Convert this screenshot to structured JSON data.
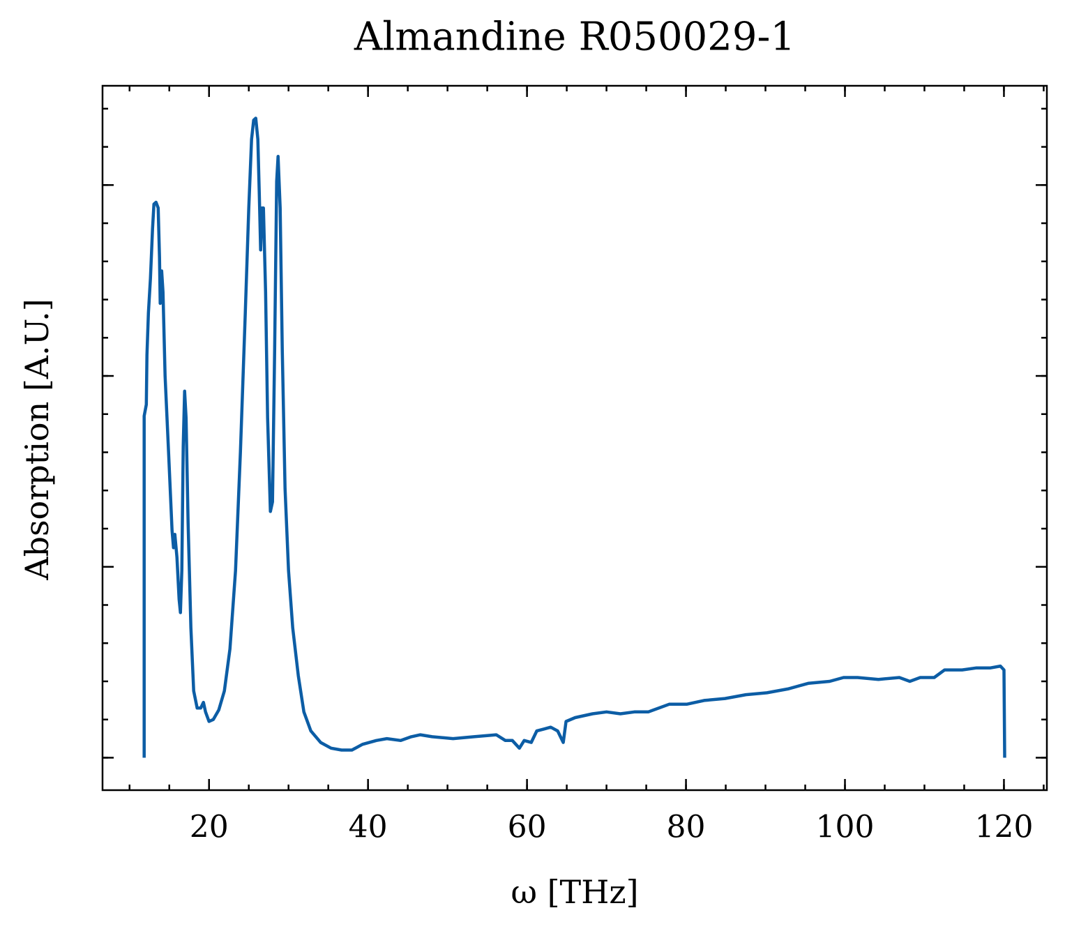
{
  "chart_data": {
    "type": "line",
    "title": "Almandine R050029-1",
    "x_label": "ω [THz]",
    "y_label": "Absorption [A.U.]",
    "series": [
      {
        "name": "Almandine R050029-1",
        "color": "#0c5da5",
        "x": [
          11.84,
          11.84,
          12.11,
          12.19,
          12.37,
          12.63,
          12.89,
          13.07,
          13.33,
          13.6,
          13.77,
          13.86,
          14.04,
          14.21,
          14.47,
          14.91,
          15.35,
          15.53,
          15.7,
          15.96,
          16.23,
          16.4,
          16.58,
          16.75,
          16.93,
          17.11,
          17.37,
          17.72,
          18.07,
          18.51,
          18.95,
          19.3,
          19.56,
          20.0,
          20.53,
          21.23,
          21.93,
          22.63,
          23.33,
          23.95,
          24.56,
          25.0,
          25.35,
          25.61,
          25.88,
          26.14,
          26.32,
          26.49,
          26.67,
          26.84,
          27.11,
          27.37,
          27.72,
          27.98,
          28.25,
          28.51,
          28.68,
          28.95,
          29.21,
          29.56,
          30.0,
          30.53,
          31.23,
          31.93,
          32.81,
          34.04,
          35.35,
          36.67,
          37.98,
          39.3,
          41.05,
          42.37,
          44.12,
          45.44,
          46.58,
          48.07,
          50.7,
          53.33,
          56.14,
          57.28,
          58.16,
          59.04,
          59.65,
          60.53,
          61.23,
          62.11,
          62.98,
          63.86,
          64.56,
          64.91,
          66.05,
          68.25,
          70.0,
          71.75,
          73.51,
          75.26,
          77.89,
          80.09,
          82.28,
          84.91,
          87.54,
          90.18,
          92.81,
          95.44,
          98.07,
          99.82,
          101.58,
          104.21,
          106.84,
          108.16,
          109.47,
          111.23,
          112.54,
          114.74,
          116.49,
          118.25,
          119.56,
          120.0,
          120.09
        ],
        "values": [
          0,
          1.79,
          1.85,
          2.11,
          2.33,
          2.51,
          2.77,
          2.9,
          2.91,
          2.88,
          2.62,
          2.38,
          2.55,
          2.44,
          2.0,
          1.6,
          1.19,
          1.1,
          1.17,
          1.05,
          0.83,
          0.76,
          0.98,
          1.63,
          1.92,
          1.78,
          1.23,
          0.68,
          0.35,
          0.26,
          0.26,
          0.29,
          0.24,
          0.19,
          0.2,
          0.25,
          0.35,
          0.57,
          0.98,
          1.6,
          2.33,
          2.88,
          3.24,
          3.34,
          3.35,
          3.24,
          2.95,
          2.66,
          2.88,
          2.88,
          2.44,
          1.78,
          1.29,
          1.34,
          2.14,
          3.02,
          3.15,
          2.88,
          2.14,
          1.41,
          0.98,
          0.68,
          0.43,
          0.24,
          0.14,
          0.08,
          0.05,
          0.04,
          0.04,
          0.07,
          0.09,
          0.1,
          0.09,
          0.11,
          0.12,
          0.11,
          0.1,
          0.11,
          0.12,
          0.09,
          0.09,
          0.05,
          0.09,
          0.08,
          0.14,
          0.15,
          0.16,
          0.14,
          0.08,
          0.19,
          0.21,
          0.23,
          0.24,
          0.23,
          0.24,
          0.24,
          0.28,
          0.28,
          0.3,
          0.31,
          0.33,
          0.34,
          0.36,
          0.39,
          0.4,
          0.42,
          0.42,
          0.41,
          0.42,
          0.4,
          0.42,
          0.42,
          0.46,
          0.46,
          0.47,
          0.47,
          0.48,
          0.46,
          0
        ]
      }
    ],
    "xlim": [
      6.6,
      125.4
    ],
    "xticks": [
      20,
      40,
      60,
      80,
      100,
      120
    ],
    "xminor": 5,
    "ylim": [
      -0.17,
      3.52
    ],
    "yticks": [
      0,
      1,
      2,
      3
    ],
    "yminor": 0.2,
    "ytick_labels": false,
    "grid": false,
    "legend": false
  }
}
